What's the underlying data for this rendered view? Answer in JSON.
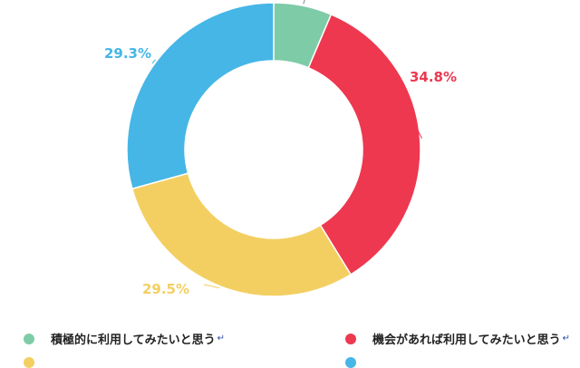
{
  "chart_data": {
    "type": "pie",
    "variant": "donut",
    "slices": [
      {
        "label": "積極的に利用してみたいと思う",
        "value": 6.4,
        "display": "",
        "color": "#7ecba8"
      },
      {
        "label": "機会があれば利用してみたいと思う",
        "value": 34.8,
        "display": "34.8%",
        "color": "#ee3850"
      },
      {
        "label": "",
        "value": 29.5,
        "display": "29.5%",
        "color": "#f3cf62"
      },
      {
        "label": "",
        "value": 29.3,
        "display": "29.3%",
        "color": "#45b6e6"
      }
    ],
    "legend_position": "bottom",
    "title": ""
  },
  "legend": {
    "items": [
      {
        "label": "積極的に利用してみたいと思う",
        "mark": "↵",
        "color": "#7ecba8"
      },
      {
        "label": "機会があれば利用してみたいと思う",
        "mark": "↵",
        "color": "#ee3850"
      },
      {
        "label": "",
        "mark": "",
        "color": "#f3cf62"
      },
      {
        "label": "",
        "mark": "",
        "color": "#45b6e6"
      }
    ]
  }
}
